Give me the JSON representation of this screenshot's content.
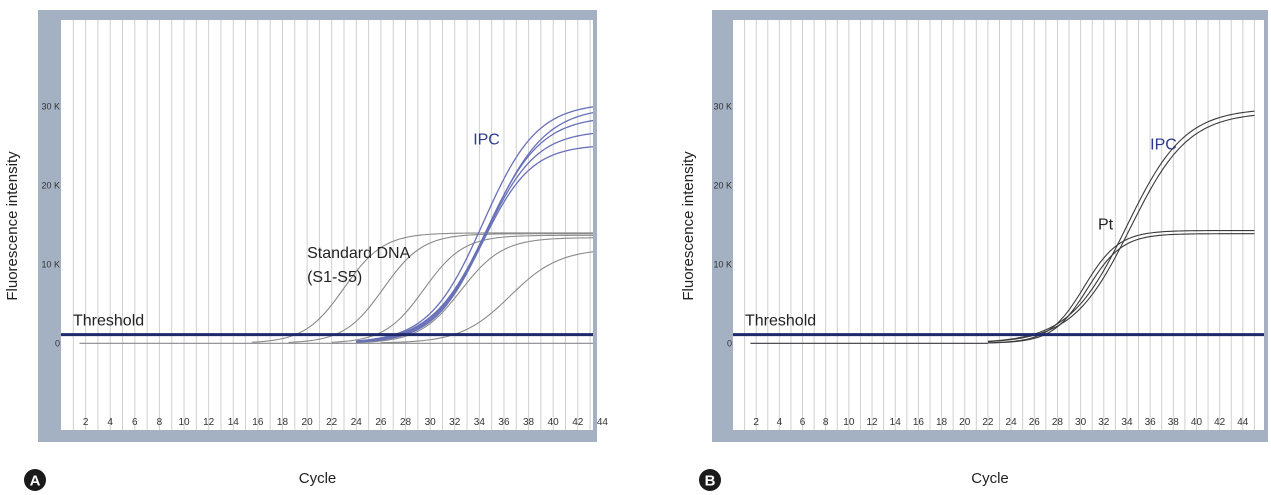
{
  "colors": {
    "frame": "#a3b1c2",
    "plot_bg": "#ffffff",
    "grid": "#cfcfcf",
    "threshold": "#1e2a6b",
    "gray_curve": "#8a8a8a",
    "blue_curve": "#6870b8",
    "black_curve": "#3a3a3a",
    "ipc_label": "#2b3a8c",
    "panel_badge": "#1a1a1a"
  },
  "chart_data": [
    {
      "type": "line",
      "panel_label": "A",
      "xlabel": "Cycle",
      "ylabel": "Fluorescence intensity",
      "x_ticks": [
        2,
        4,
        6,
        8,
        10,
        12,
        14,
        16,
        18,
        20,
        22,
        24,
        26,
        28,
        30,
        32,
        34,
        36,
        38,
        40,
        42,
        44
      ],
      "y_ticks": [
        {
          "value": 0,
          "label": "0"
        },
        {
          "value": 10000,
          "label": "10 K"
        },
        {
          "value": 20000,
          "label": "20 K"
        },
        {
          "value": 30000,
          "label": "30 K"
        }
      ],
      "xlim": [
        0,
        46
      ],
      "ylim": [
        -11000,
        41000
      ],
      "threshold": {
        "value": 1100,
        "label": "Threshold"
      },
      "annotations": [
        {
          "text": "IPC",
          "x": 33.5,
          "y": 25200,
          "color_key": "ipc_label"
        },
        {
          "text": "Standard DNA",
          "x": 20,
          "y": 10800
        },
        {
          "text": "(S1-S5)",
          "x": 20,
          "y": 7800
        }
      ],
      "series": [
        {
          "group": "standard",
          "color_key": "gray_curve",
          "x_start": 15.5,
          "max": 14000,
          "midpoint": 23.0,
          "slope": 1.6
        },
        {
          "group": "standard",
          "color_key": "gray_curve",
          "x_start": 18.5,
          "max": 13900,
          "midpoint": 26.2,
          "slope": 1.6
        },
        {
          "group": "standard",
          "color_key": "gray_curve",
          "x_start": 22.0,
          "max": 13700,
          "midpoint": 29.5,
          "slope": 1.6
        },
        {
          "group": "standard",
          "color_key": "gray_curve",
          "x_start": 24.0,
          "max": 13400,
          "midpoint": 32.5,
          "slope": 1.7
        },
        {
          "group": "standard",
          "color_key": "gray_curve",
          "x_start": 26.0,
          "max": 12000,
          "midpoint": 36.5,
          "slope": 2.0
        },
        {
          "group": "ipc",
          "color_key": "blue_curve",
          "x_start": 24.0,
          "max": 30500,
          "midpoint": 34.3,
          "slope": 2.2
        },
        {
          "group": "ipc",
          "color_key": "blue_curve",
          "x_start": 24.0,
          "max": 30000,
          "midpoint": 34.8,
          "slope": 2.3
        },
        {
          "group": "ipc",
          "color_key": "blue_curve",
          "x_start": 24.0,
          "max": 28800,
          "midpoint": 34.6,
          "slope": 2.2
        },
        {
          "group": "ipc",
          "color_key": "blue_curve",
          "x_start": 24.0,
          "max": 27000,
          "midpoint": 34.4,
          "slope": 2.1
        },
        {
          "group": "ipc",
          "color_key": "blue_curve",
          "x_start": 24.0,
          "max": 25200,
          "midpoint": 34.2,
          "slope": 2.0
        },
        {
          "group": "ntc",
          "color_key": "gray_curve",
          "x_start": 1.5,
          "x_end": 45,
          "constant": 0
        }
      ]
    },
    {
      "type": "line",
      "panel_label": "B",
      "xlabel": "Cycle",
      "ylabel": "Fluorescence intensity",
      "x_ticks": [
        2,
        4,
        6,
        8,
        10,
        12,
        14,
        16,
        18,
        20,
        22,
        24,
        26,
        28,
        30,
        32,
        34,
        36,
        38,
        40,
        42,
        44
      ],
      "y_ticks": [
        {
          "value": 0,
          "label": "0"
        },
        {
          "value": 10000,
          "label": "10 K"
        },
        {
          "value": 20000,
          "label": "20 K"
        },
        {
          "value": 30000,
          "label": "30 K"
        }
      ],
      "xlim": [
        0,
        46
      ],
      "ylim": [
        -11000,
        41000
      ],
      "threshold": {
        "value": 1100,
        "label": "Threshold"
      },
      "annotations": [
        {
          "text": "IPC",
          "x": 36.0,
          "y": 24600,
          "color_key": "ipc_label"
        },
        {
          "text": "Pt",
          "x": 31.5,
          "y": 14400
        }
      ],
      "series": [
        {
          "group": "baseline",
          "color_key": "black_curve",
          "x_start": 1.5,
          "x_end": 22.0,
          "constant": 0
        },
        {
          "group": "pt",
          "color_key": "black_curve",
          "x_start": 22.0,
          "max": 14300,
          "midpoint": 30.3,
          "slope": 1.5
        },
        {
          "group": "pt",
          "color_key": "black_curve",
          "x_start": 22.0,
          "max": 13900,
          "midpoint": 30.6,
          "slope": 1.5
        },
        {
          "group": "ipc",
          "color_key": "black_curve",
          "x_start": 22.0,
          "max": 29800,
          "midpoint": 34.0,
          "slope": 2.5
        },
        {
          "group": "ipc",
          "color_key": "black_curve",
          "x_start": 22.0,
          "max": 29300,
          "midpoint": 34.3,
          "slope": 2.5
        }
      ]
    }
  ]
}
